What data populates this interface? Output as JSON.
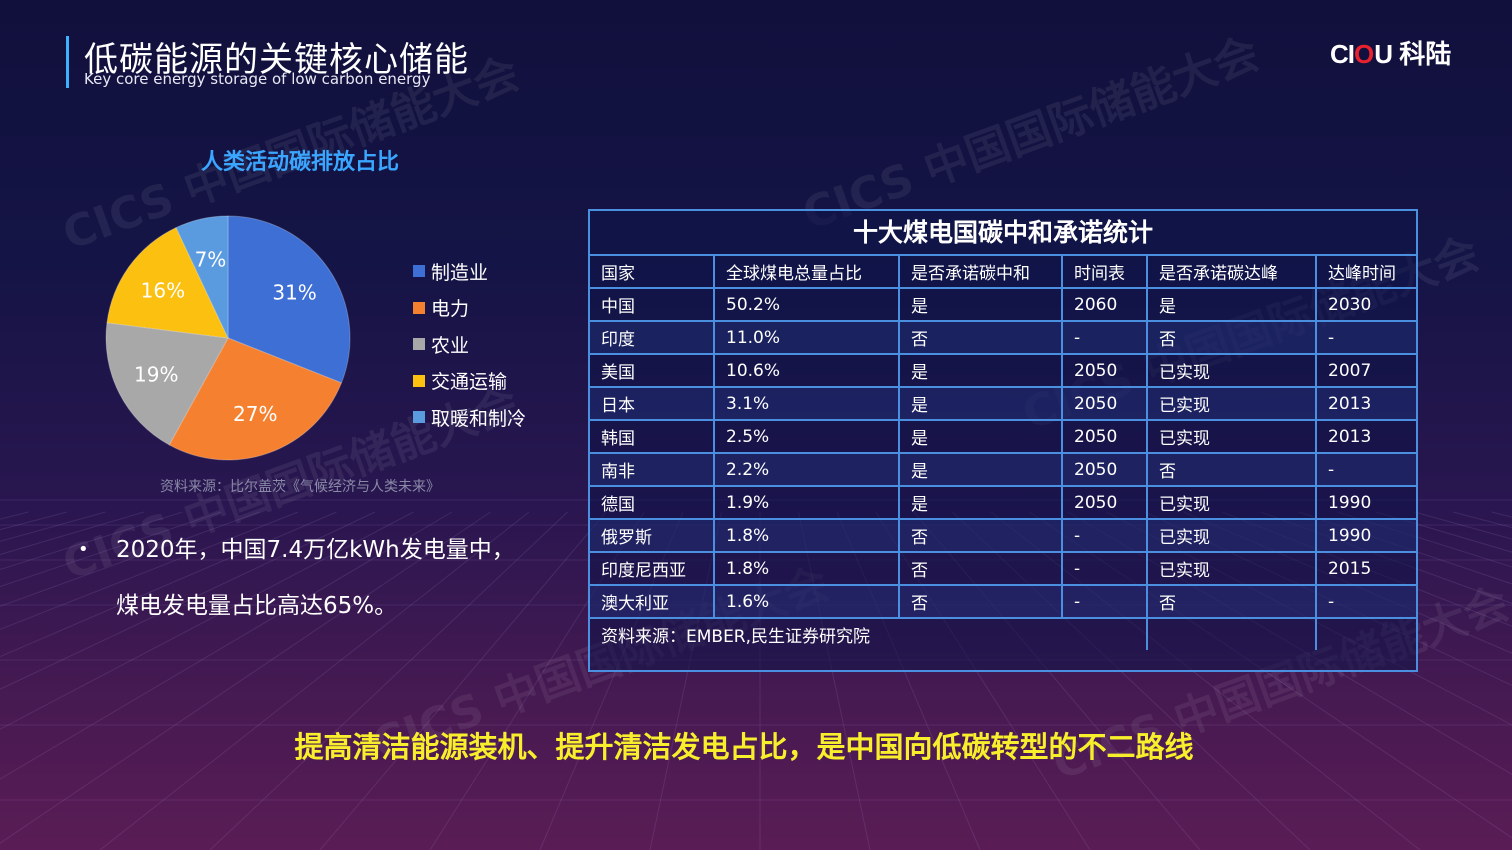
{
  "header": {
    "title_cn": "低碳能源的关键核心储能",
    "title_en": "Key core energy storage of low carbon energy"
  },
  "logo": {
    "part1": "CI",
    "part2": "O",
    "part3": "U",
    "part4": " 科陆"
  },
  "watermark": {
    "text": "CICS 中国国际储能大会"
  },
  "pie": {
    "title": "人类活动碳排放占比",
    "source": "资料来源：比尔盖茨《气候经济与人类未来》"
  },
  "chart_data": {
    "type": "pie",
    "title": "人类活动碳排放占比",
    "categories": [
      "制造业",
      "电力",
      "农业",
      "交通运输",
      "取暖和制冷"
    ],
    "values": [
      31,
      27,
      19,
      16,
      7
    ],
    "labels": [
      "31%",
      "27%",
      "19%",
      "16%",
      "7%"
    ],
    "colors": [
      "#3d6fd4",
      "#f58130",
      "#a8a8a8",
      "#fbc010",
      "#5a9be0"
    ],
    "legend_position": "right"
  },
  "bullet": {
    "line1": "2020年，中国7.4万亿kWh发电量中，",
    "line2": "煤电发电量占比高达65%。"
  },
  "table": {
    "title": "十大煤电国碳中和承诺统计",
    "headers": [
      "国家",
      "全球煤电总量占比",
      "是否承诺碳中和",
      "时间表",
      "是否承诺碳达峰",
      "达峰时间"
    ],
    "rows": [
      [
        "中国",
        "50.2%",
        "是",
        "2060",
        "是",
        "2030"
      ],
      [
        "印度",
        "11.0%",
        "否",
        "-",
        "否",
        "-"
      ],
      [
        "美国",
        "10.6%",
        "是",
        "2050",
        "已实现",
        "2007"
      ],
      [
        "日本",
        "3.1%",
        "是",
        "2050",
        "已实现",
        "2013"
      ],
      [
        "韩国",
        "2.5%",
        "是",
        "2050",
        "已实现",
        "2013"
      ],
      [
        "南非",
        "2.2%",
        "是",
        "2050",
        "否",
        "-"
      ],
      [
        "德国",
        "1.9%",
        "是",
        "2050",
        "已实现",
        "1990"
      ],
      [
        "俄罗斯",
        "1.8%",
        "否",
        "-",
        "已实现",
        "1990"
      ],
      [
        "印度尼西亚",
        "1.8%",
        "否",
        "-",
        "已实现",
        "2015"
      ],
      [
        "澳大利亚",
        "1.6%",
        "否",
        "-",
        "否",
        "-"
      ]
    ],
    "source": "资料来源：EMBER,民生证券研究院"
  },
  "conclusion": "提高清洁能源装机、提升清洁发电占比，是中国向低碳转型的不二路线"
}
